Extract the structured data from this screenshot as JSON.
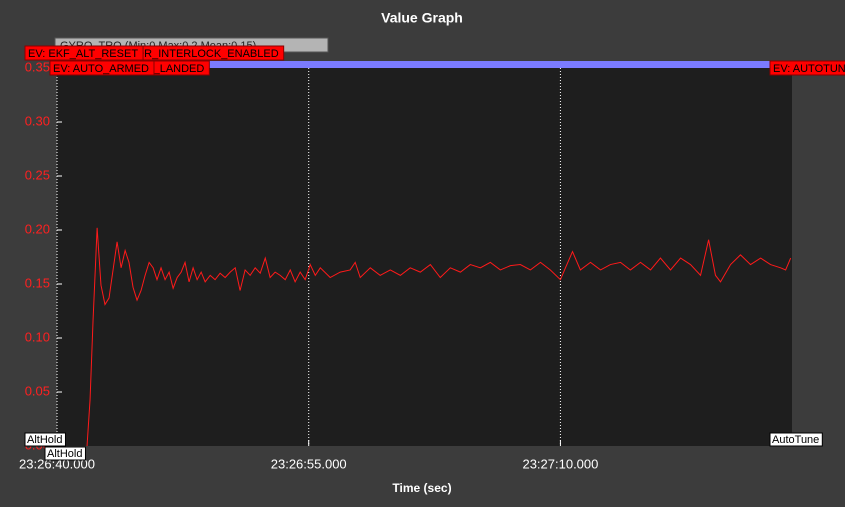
{
  "chart_data": {
    "type": "line",
    "title": "Value Graph",
    "x_label": "Time (sec)",
    "xlim": [
      84400,
      84443.8
    ],
    "xticks": [
      {
        "value": 84400,
        "label": "23:26:40.000"
      },
      {
        "value": 84415,
        "label": "23:26:55.000"
      },
      {
        "value": 84430,
        "label": "23:27:10.000"
      }
    ],
    "ylim": [
      0,
      0.35
    ],
    "yticks": [
      {
        "value": 0,
        "label": "0.00"
      },
      {
        "value": 0.05,
        "label": "0.05"
      },
      {
        "value": 0.1,
        "label": "0.10"
      },
      {
        "value": 0.15,
        "label": "0.15"
      },
      {
        "value": 0.2,
        "label": "0.20"
      },
      {
        "value": 0.25,
        "label": "0.25"
      },
      {
        "value": 0.3,
        "label": "0.30"
      },
      {
        "value": 0.35,
        "label": "0.35"
      }
    ],
    "grid": true,
    "x": [
      84401.79,
      84401.97,
      84402.15,
      84402.39,
      84402.62,
      84402.86,
      84403.1,
      84403.34,
      84403.58,
      84403.82,
      84404.06,
      84404.29,
      84404.53,
      84404.77,
      84405.01,
      84405.25,
      84405.49,
      84405.73,
      84405.96,
      84406.2,
      84406.44,
      84406.68,
      84406.92,
      84407.16,
      84407.4,
      84407.63,
      84407.87,
      84408.11,
      84408.35,
      84408.59,
      84408.83,
      84409.13,
      84409.42,
      84409.72,
      84410.02,
      84410.32,
      84410.62,
      84410.91,
      84411.21,
      84411.51,
      84411.81,
      84412.11,
      84412.41,
      84412.7,
      84413.0,
      84413.3,
      84413.6,
      84413.9,
      84414.19,
      84414.49,
      84414.79,
      84415.09,
      84415.39,
      84415.69,
      84416.28,
      84416.88,
      84417.47,
      84417.77,
      84418.07,
      84418.67,
      84419.26,
      84419.86,
      84420.46,
      84421.05,
      84421.65,
      84422.25,
      84422.84,
      84423.44,
      84424.04,
      84424.63,
      84425.23,
      84425.82,
      84426.42,
      84427.02,
      84427.61,
      84428.21,
      84428.81,
      84429.4,
      84430.0,
      84430.3,
      84430.72,
      84431.19,
      84431.79,
      84432.39,
      84432.98,
      84433.58,
      84434.17,
      84434.77,
      84435.37,
      84435.96,
      84436.56,
      84437.16,
      84437.75,
      84438.35,
      84438.83,
      84439.24,
      84439.54,
      84440.14,
      84440.73,
      84441.33,
      84441.93,
      84442.52,
      84443.12,
      84443.42,
      84443.72
    ],
    "series": [
      {
        "name": "GYRO_TRQ (Min:0 Max:0.2 Mean:0.15)",
        "color": "#ff1a1a",
        "values": [
          0,
          0.043,
          0.117,
          0.202,
          0.149,
          0.131,
          0.137,
          0.163,
          0.189,
          0.165,
          0.181,
          0.17,
          0.147,
          0.135,
          0.144,
          0.158,
          0.17,
          0.165,
          0.154,
          0.165,
          0.154,
          0.161,
          0.146,
          0.156,
          0.161,
          0.17,
          0.152,
          0.165,
          0.154,
          0.161,
          0.152,
          0.158,
          0.154,
          0.16,
          0.156,
          0.161,
          0.165,
          0.144,
          0.163,
          0.158,
          0.165,
          0.16,
          0.174,
          0.156,
          0.161,
          0.158,
          0.154,
          0.163,
          0.152,
          0.161,
          0.154,
          0.168,
          0.158,
          0.165,
          0.156,
          0.161,
          0.163,
          0.17,
          0.156,
          0.165,
          0.158,
          0.163,
          0.158,
          0.165,
          0.161,
          0.168,
          0.156,
          0.165,
          0.161,
          0.168,
          0.165,
          0.17,
          0.163,
          0.167,
          0.168,
          0.163,
          0.17,
          0.163,
          0.154,
          0.165,
          0.18,
          0.163,
          0.17,
          0.163,
          0.168,
          0.17,
          0.163,
          0.17,
          0.163,
          0.174,
          0.163,
          0.174,
          0.168,
          0.158,
          0.191,
          0.158,
          0.152,
          0.168,
          0.177,
          0.168,
          0.174,
          0.168,
          0.165,
          0.163,
          0.174
        ]
      }
    ],
    "events": [
      "EV: MOTOR_INTERLOCK_ENABLED",
      "EV: EKF_ALT_RESET",
      "EV: NOT_LANDED",
      "EV: AUTO_ARMED",
      "EV: AUTOTUNE_INITIALISED"
    ],
    "modes": [
      "AltHold",
      "AltHold",
      "AutoTune"
    ]
  }
}
